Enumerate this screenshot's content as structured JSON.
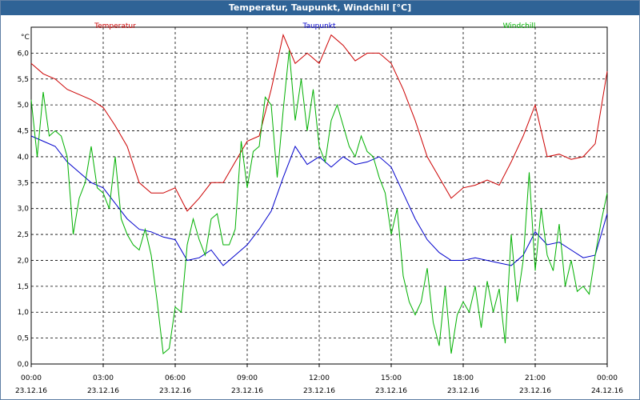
{
  "window": {
    "title": "Temperatur, Taupunkt, Windchill [°C]"
  },
  "chart_data": {
    "type": "line",
    "title": "Temperatur, Taupunkt, Windchill [°C]",
    "unit": "°C",
    "ylim": [
      0,
      6.5
    ],
    "yticks": [
      "0,0",
      "0,5",
      "1,0",
      "1,5",
      "2,0",
      "2,5",
      "3,0",
      "3,5",
      "4,0",
      "4,5",
      "5,0",
      "5,5",
      "6,0"
    ],
    "xlim": [
      0,
      24
    ],
    "xticks": [
      {
        "time": "00:00",
        "date": "23.12.16"
      },
      {
        "time": "03:00",
        "date": "23.12.16"
      },
      {
        "time": "06:00",
        "date": "23.12.16"
      },
      {
        "time": "09:00",
        "date": "23.12.16"
      },
      {
        "time": "12:00",
        "date": "23.12.16"
      },
      {
        "time": "15:00",
        "date": "23.12.16"
      },
      {
        "time": "18:00",
        "date": "23.12.16"
      },
      {
        "time": "21:00",
        "date": "23.12.16"
      },
      {
        "time": "00:00",
        "date": "24.12.16"
      }
    ],
    "grid": true,
    "legend": "top",
    "series": [
      {
        "name": "Temperatur",
        "color": "#cc0000",
        "x": [
          0,
          0.5,
          1,
          1.5,
          2,
          2.5,
          3,
          3.5,
          4,
          4.5,
          5,
          5.5,
          6,
          6.5,
          7,
          7.5,
          8,
          8.5,
          9,
          9.5,
          10,
          10.5,
          11,
          11.5,
          12,
          12.5,
          13,
          13.5,
          14,
          14.5,
          15,
          15.5,
          16,
          16.5,
          17,
          17.5,
          18,
          18.5,
          19,
          19.5,
          20,
          20.5,
          21,
          21.5,
          22,
          22.5,
          23,
          23.5,
          24
        ],
        "y": [
          5.8,
          5.6,
          5.5,
          5.3,
          5.2,
          5.1,
          4.95,
          4.6,
          4.2,
          3.5,
          3.3,
          3.3,
          3.4,
          2.95,
          3.2,
          3.5,
          3.5,
          3.9,
          4.3,
          4.4,
          5.3,
          6.35,
          5.8,
          6.0,
          5.8,
          6.35,
          6.15,
          5.85,
          6.0,
          6.0,
          5.8,
          5.3,
          4.7,
          4.0,
          3.6,
          3.2,
          3.4,
          3.45,
          3.55,
          3.45,
          3.9,
          4.4,
          5.0,
          4.0,
          4.05,
          3.95,
          4.0,
          4.25,
          5.65
        ]
      },
      {
        "name": "Taupunkt",
        "color": "#0000cc",
        "x": [
          0,
          0.5,
          1,
          1.5,
          2,
          2.5,
          3,
          3.5,
          4,
          4.5,
          5,
          5.5,
          6,
          6.5,
          7,
          7.5,
          8,
          8.5,
          9,
          9.5,
          10,
          10.5,
          11,
          11.5,
          12,
          12.5,
          13,
          13.5,
          14,
          14.5,
          15,
          15.5,
          16,
          16.5,
          17,
          17.5,
          18,
          18.5,
          19,
          19.5,
          20,
          20.5,
          21,
          21.5,
          22,
          22.5,
          23,
          23.5,
          24
        ],
        "y": [
          4.4,
          4.3,
          4.2,
          3.9,
          3.7,
          3.5,
          3.4,
          3.1,
          2.8,
          2.6,
          2.55,
          2.45,
          2.4,
          2.0,
          2.05,
          2.2,
          1.9,
          2.1,
          2.3,
          2.6,
          2.95,
          3.6,
          4.2,
          3.85,
          4.0,
          3.8,
          4.0,
          3.85,
          3.9,
          4.0,
          3.8,
          3.3,
          2.8,
          2.4,
          2.15,
          2.0,
          2.0,
          2.05,
          2.0,
          1.95,
          1.9,
          2.1,
          2.55,
          2.3,
          2.35,
          2.2,
          2.05,
          2.1,
          2.9
        ]
      },
      {
        "name": "Windchill",
        "color": "#00b000",
        "x": [
          0,
          0.25,
          0.5,
          0.75,
          1,
          1.25,
          1.5,
          1.75,
          2,
          2.25,
          2.5,
          2.75,
          3,
          3.25,
          3.5,
          3.75,
          4,
          4.25,
          4.5,
          4.75,
          5,
          5.25,
          5.5,
          5.75,
          6,
          6.25,
          6.5,
          6.75,
          7,
          7.25,
          7.5,
          7.75,
          8,
          8.25,
          8.5,
          8.75,
          9,
          9.25,
          9.5,
          9.75,
          10,
          10.25,
          10.5,
          10.75,
          11,
          11.25,
          11.5,
          11.75,
          12,
          12.25,
          12.5,
          12.75,
          13,
          13.25,
          13.5,
          13.75,
          14,
          14.25,
          14.5,
          14.75,
          15,
          15.25,
          15.5,
          15.75,
          16,
          16.25,
          16.5,
          16.75,
          17,
          17.25,
          17.5,
          17.75,
          18,
          18.25,
          18.5,
          18.75,
          19,
          19.25,
          19.5,
          19.75,
          20,
          20.25,
          20.5,
          20.75,
          21,
          21.25,
          21.5,
          21.75,
          22,
          22.25,
          22.5,
          22.75,
          23,
          23.25,
          23.5,
          23.75,
          24
        ],
        "y": [
          5.1,
          4.0,
          5.25,
          4.4,
          4.5,
          4.4,
          4.0,
          2.5,
          3.2,
          3.5,
          4.2,
          3.4,
          3.3,
          3.0,
          4.0,
          2.8,
          2.5,
          2.3,
          2.2,
          2.6,
          2.1,
          1.2,
          0.2,
          0.3,
          1.1,
          1.0,
          2.3,
          2.8,
          2.4,
          2.1,
          2.8,
          2.9,
          2.3,
          2.3,
          2.6,
          4.3,
          3.4,
          4.1,
          4.2,
          5.15,
          5.0,
          3.6,
          4.9,
          6.05,
          4.7,
          5.5,
          4.5,
          5.3,
          4.2,
          3.9,
          4.7,
          5.0,
          4.6,
          4.2,
          4.0,
          4.4,
          4.1,
          4.0,
          3.6,
          3.3,
          2.5,
          3.0,
          1.7,
          1.2,
          0.95,
          1.2,
          1.85,
          0.8,
          0.35,
          1.5,
          0.2,
          0.95,
          1.2,
          1.0,
          1.5,
          0.7,
          1.6,
          1.0,
          1.45,
          0.4,
          2.5,
          1.2,
          2.0,
          3.7,
          1.8,
          3.0,
          2.1,
          1.8,
          2.7,
          1.5,
          2.0,
          1.4,
          1.5,
          1.35,
          2.1,
          2.75,
          3.3
        ]
      }
    ]
  }
}
